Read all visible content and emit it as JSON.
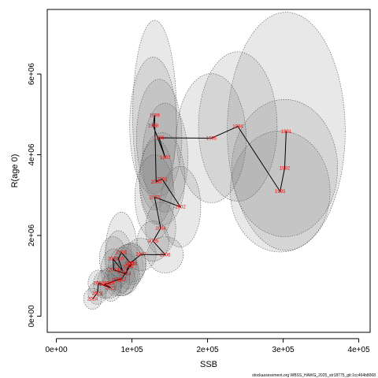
{
  "chart_data": {
    "type": "scatter",
    "xlabel": "SSB",
    "ylabel": "R(age 0)",
    "xlim": [
      -12000,
      415000
    ],
    "ylim": [
      -400000,
      7600000
    ],
    "x_ticks": [
      {
        "value": 0,
        "label": "0e+00"
      },
      {
        "value": 100000,
        "label": "1e+05"
      },
      {
        "value": 200000,
        "label": "2e+05"
      },
      {
        "value": 300000,
        "label": "3e+05"
      },
      {
        "value": 400000,
        "label": "4e+05"
      }
    ],
    "y_ticks": [
      {
        "value": 0,
        "label": "0e+00"
      },
      {
        "value": 2000000,
        "label": "2e+06"
      },
      {
        "value": 4000000,
        "label": "4e+06"
      },
      {
        "value": 6000000,
        "label": "6e+06"
      }
    ],
    "grid": false,
    "points": [
      {
        "label": "1991",
        "x": 304000,
        "y": 4580000,
        "rx": 78000,
        "ry": 2950000
      },
      {
        "label": "1992",
        "x": 302000,
        "y": 3670000,
        "rx": 70000,
        "ry": 1700000
      },
      {
        "label": "1993",
        "x": 296000,
        "y": 3090000,
        "rx": 66000,
        "ry": 1500000
      },
      {
        "label": "1994",
        "x": 240000,
        "y": 4700000,
        "rx": 52000,
        "ry": 1850000
      },
      {
        "label": "1995",
        "x": 205000,
        "y": 4410000,
        "rx": 46000,
        "ry": 1600000
      },
      {
        "label": "1996",
        "x": 136000,
        "y": 4420000,
        "rx": 30000,
        "ry": 1450000
      },
      {
        "label": "1997",
        "x": 144000,
        "y": 3930000,
        "rx": 30000,
        "ry": 1350000
      },
      {
        "label": "1998",
        "x": 128000,
        "y": 4720000,
        "rx": 31000,
        "ry": 1700000
      },
      {
        "label": "1999",
        "x": 130000,
        "y": 4980000,
        "rx": 29000,
        "ry": 2350000
      },
      {
        "label": "2000",
        "x": 132000,
        "y": 3330000,
        "rx": 22000,
        "ry": 1050000
      },
      {
        "label": "2001",
        "x": 140000,
        "y": 3400000,
        "rx": 30000,
        "ry": 1150000
      },
      {
        "label": "2002",
        "x": 164000,
        "y": 2710000,
        "rx": 27000,
        "ry": 1000000
      },
      {
        "label": "2003",
        "x": 130000,
        "y": 2950000,
        "rx": 26000,
        "ry": 1050000
      },
      {
        "label": "2004",
        "x": 138000,
        "y": 2180000,
        "rx": 20000,
        "ry": 650000
      },
      {
        "label": "2005",
        "x": 128000,
        "y": 1860000,
        "rx": 21000,
        "ry": 500000
      },
      {
        "label": "2006",
        "x": 144000,
        "y": 1520000,
        "rx": 24000,
        "ry": 450000
      },
      {
        "label": "2007",
        "x": 112000,
        "y": 1530000,
        "rx": 20000,
        "ry": 400000
      },
      {
        "label": "2008",
        "x": 98000,
        "y": 1320000,
        "rx": 21000,
        "ry": 480000
      },
      {
        "label": "2009",
        "x": 86000,
        "y": 1580000,
        "rx": 21000,
        "ry": 1000000
      },
      {
        "label": "2010",
        "x": 82000,
        "y": 1420000,
        "rx": 18000,
        "ry": 700000
      },
      {
        "label": "2011",
        "x": 88000,
        "y": 1110000,
        "rx": 20000,
        "ry": 600000
      },
      {
        "label": "2012",
        "x": 75000,
        "y": 1420000,
        "rx": 18000,
        "ry": 550000
      },
      {
        "label": "2013",
        "x": 76000,
        "y": 1150000,
        "rx": 17000,
        "ry": 520000
      },
      {
        "label": "2014",
        "x": 92000,
        "y": 1050000,
        "rx": 18000,
        "ry": 500000
      },
      {
        "label": "2015",
        "x": 95000,
        "y": 1230000,
        "rx": 20000,
        "ry": 550000
      },
      {
        "label": "2016",
        "x": 100000,
        "y": 1300000,
        "rx": 18000,
        "ry": 520000
      },
      {
        "label": "2017",
        "x": 86000,
        "y": 920000,
        "rx": 18000,
        "ry": 420000
      },
      {
        "label": "2018",
        "x": 80000,
        "y": 900000,
        "rx": 17000,
        "ry": 400000
      },
      {
        "label": "2019",
        "x": 70000,
        "y": 820000,
        "rx": 16000,
        "ry": 380000
      },
      {
        "label": "2020",
        "x": 64000,
        "y": 790000,
        "rx": 15000,
        "ry": 350000
      },
      {
        "label": "2021",
        "x": 72000,
        "y": 700000,
        "rx": 14000,
        "ry": 330000
      },
      {
        "label": "2022",
        "x": 56000,
        "y": 820000,
        "rx": 14000,
        "ry": 320000
      },
      {
        "label": "2023",
        "x": 54000,
        "y": 570000,
        "rx": 12000,
        "ry": 280000
      },
      {
        "label": "2024",
        "x": 48000,
        "y": 430000,
        "rx": 12000,
        "ry": 260000
      }
    ],
    "colors": {
      "trajectory": "#000000",
      "labels": "#ff0000",
      "ellipse_fill": "#808080",
      "ellipse_stroke": "#555555"
    }
  },
  "footer": {
    "text": "stockassessment.org WBSS_HAWG_2025_str18775_git:1cc464b8068"
  }
}
